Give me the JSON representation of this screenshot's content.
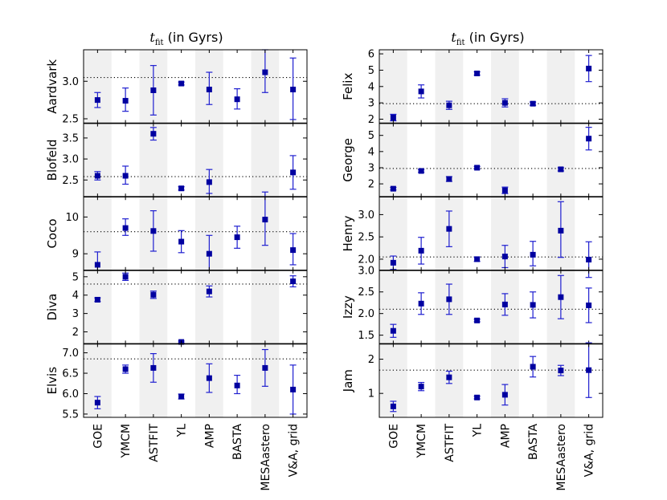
{
  "methods": [
    "GOE",
    "YMCM",
    "ASTFIT",
    "YL",
    "AMP",
    "BASTA",
    "MESAastero",
    "V&A, grid"
  ],
  "columns": [
    {
      "title": {
        "symbol": "t",
        "subscript": "fit",
        "rest": " (in Gyrs)"
      },
      "panels": [
        {
          "star": "Aardvark",
          "ylim": [
            2.44,
            3.42
          ],
          "yticks": [
            2.5,
            3.0
          ],
          "ytick_labels": [
            "2.5",
            "3.0"
          ],
          "reference": 3.05
        },
        {
          "star": "Blofeld",
          "ylim": [
            2.1,
            3.85
          ],
          "yticks": [
            2.5,
            3.0,
            3.5
          ],
          "ytick_labels": [
            "2.5",
            "3.0",
            "3.5"
          ],
          "reference": 2.58
        },
        {
          "star": "Coco",
          "ylim": [
            8.55,
            10.55
          ],
          "yticks": [
            9,
            10
          ],
          "ytick_labels": [
            "9",
            "10"
          ],
          "reference": 9.6
        },
        {
          "star": "Diva",
          "ylim": [
            1.35,
            5.35
          ],
          "yticks": [
            2,
            3,
            4,
            5
          ],
          "ytick_labels": [
            "2",
            "3",
            "4",
            "5"
          ],
          "reference": 4.6
        },
        {
          "star": "Elvis",
          "ylim": [
            5.42,
            7.22
          ],
          "yticks": [
            5.5,
            6.0,
            6.5,
            7.0
          ],
          "ytick_labels": [
            "5.5",
            "6.0",
            "6.5",
            "7.0"
          ],
          "reference": 6.85
        }
      ]
    },
    {
      "title": {
        "symbol": "t",
        "subscript": "fit",
        "rest": " (in Gyrs)"
      },
      "panels": [
        {
          "star": "Felix",
          "ylim": [
            1.75,
            6.25
          ],
          "yticks": [
            2,
            3,
            4,
            5,
            6
          ],
          "ytick_labels": [
            "2",
            "3",
            "4",
            "5",
            "6"
          ],
          "reference": 2.95
        },
        {
          "star": "George",
          "ylim": [
            1.2,
            5.75
          ],
          "yticks": [
            2,
            3,
            4,
            5
          ],
          "ytick_labels": [
            "2",
            "3",
            "4",
            "5"
          ],
          "reference": 2.95
        },
        {
          "star": "Henry",
          "ylim": [
            1.75,
            3.4
          ],
          "yticks": [
            2.0,
            2.5,
            3.0
          ],
          "ytick_labels": [
            "2.0",
            "2.5",
            "3.0"
          ],
          "reference": 2.05
        },
        {
          "star": "Izzy",
          "ylim": [
            1.3,
            3.0
          ],
          "yticks": [
            1.5,
            2.0,
            2.5,
            3.0
          ],
          "ytick_labels": [
            "1.5",
            "2.0",
            "2.5",
            "3.0"
          ],
          "reference": 2.1
        },
        {
          "star": "Jam",
          "ylim": [
            0.3,
            2.45
          ],
          "yticks": [
            1,
            2
          ],
          "ytick_labels": [
            "1",
            "2"
          ],
          "reference": 1.68
        }
      ]
    }
  ],
  "chart_data": {
    "type": "scatter",
    "title": "t_fit (in Gyrs)",
    "xlabel": "",
    "ylabel": "",
    "categories": [
      "GOE",
      "YMCM",
      "ASTFIT",
      "YL",
      "AMP",
      "BASTA",
      "MESAastero",
      "V&A, grid"
    ],
    "marker": "square",
    "color": "#0000a0",
    "errorbar_color": "#1f1fd0",
    "reference_line": "dotted",
    "shaded_categories": [
      "GOE",
      "ASTFIT",
      "AMP",
      "MESAastero"
    ],
    "panels": [
      {
        "star": "Aardvark",
        "values": [
          2.75,
          2.74,
          2.88,
          2.97,
          2.89,
          2.76,
          3.12,
          2.89
        ],
        "err_low": [
          0.1,
          0.14,
          0.33,
          0.02,
          0.2,
          0.13,
          0.27,
          0.4
        ],
        "err_high": [
          0.1,
          0.17,
          0.33,
          0.02,
          0.23,
          0.14,
          0.3,
          0.42
        ],
        "reference": 3.05
      },
      {
        "star": "Blofeld",
        "values": [
          2.6,
          2.6,
          3.6,
          2.3,
          2.45,
          null,
          null,
          2.68
        ],
        "err_low": [
          0.1,
          0.2,
          0.15,
          0.04,
          0.27,
          0,
          0,
          0.4
        ],
        "err_high": [
          0.1,
          0.23,
          0.15,
          0.04,
          0.3,
          0,
          0,
          0.4
        ],
        "reference": 2.58
      },
      {
        "star": "Coco",
        "values": [
          8.7,
          9.7,
          9.62,
          9.33,
          9.0,
          9.45,
          9.93,
          9.1
        ],
        "err_low": [
          0.35,
          0.2,
          0.55,
          0.3,
          0.5,
          0.3,
          0.7,
          0.4
        ],
        "err_high": [
          0.35,
          0.25,
          0.55,
          0.3,
          0.5,
          0.3,
          0.75,
          0.45
        ],
        "reference": 9.6
      },
      {
        "star": "Diva",
        "values": [
          3.75,
          5.0,
          4.02,
          1.45,
          4.2,
          null,
          null,
          4.75
        ],
        "err_low": [
          0.1,
          0.2,
          0.2,
          0.05,
          0.3,
          0,
          0,
          0.3
        ],
        "err_high": [
          0.1,
          0.2,
          0.2,
          0.05,
          0.3,
          0,
          0,
          0.3
        ],
        "reference": 4.6
      },
      {
        "star": "Elvis",
        "values": [
          5.78,
          6.6,
          6.63,
          5.93,
          6.38,
          6.2,
          6.63,
          6.1
        ],
        "err_low": [
          0.15,
          0.1,
          0.35,
          0.06,
          0.35,
          0.2,
          0.45,
          0.6
        ],
        "err_high": [
          0.15,
          0.1,
          0.35,
          0.06,
          0.35,
          0.25,
          0.45,
          0.6
        ],
        "reference": 6.85
      },
      {
        "star": "Felix",
        "values": [
          2.1,
          3.7,
          2.85,
          4.8,
          3.0,
          2.95,
          null,
          5.1
        ],
        "err_low": [
          0.2,
          0.4,
          0.25,
          0.1,
          0.25,
          0.1,
          0,
          0.8
        ],
        "err_high": [
          0.2,
          0.4,
          0.25,
          0.1,
          0.25,
          0.1,
          0,
          0.8
        ],
        "reference": 2.95
      },
      {
        "star": "George",
        "values": [
          1.7,
          2.8,
          2.3,
          3.0,
          1.6,
          null,
          2.9,
          4.8
        ],
        "err_low": [
          0.08,
          0.08,
          0.15,
          0.08,
          0.2,
          0,
          0.1,
          0.7
        ],
        "err_high": [
          0.08,
          0.08,
          0.15,
          0.08,
          0.2,
          0,
          0.1,
          0.7
        ],
        "reference": 2.95
      },
      {
        "star": "Henry",
        "values": [
          1.92,
          2.19,
          2.68,
          2.0,
          2.06,
          2.1,
          2.64,
          1.99
        ],
        "err_low": [
          0.15,
          0.3,
          0.4,
          0.05,
          0.25,
          0.25,
          0.6,
          0.4
        ],
        "err_high": [
          0.15,
          0.3,
          0.4,
          0.05,
          0.25,
          0.3,
          0.65,
          0.4
        ],
        "reference": 2.05
      },
      {
        "star": "Izzy",
        "values": [
          1.6,
          2.23,
          2.33,
          1.84,
          2.21,
          2.2,
          2.38,
          2.19
        ],
        "err_low": [
          0.15,
          0.25,
          0.35,
          0.03,
          0.25,
          0.3,
          0.5,
          0.4
        ],
        "err_high": [
          0.15,
          0.25,
          0.35,
          0.03,
          0.25,
          0.3,
          0.5,
          0.4
        ],
        "reference": 2.1
      },
      {
        "star": "Jam",
        "values": [
          0.62,
          1.2,
          1.47,
          0.88,
          0.96,
          1.78,
          1.67,
          1.68
        ],
        "err_low": [
          0.15,
          0.12,
          0.18,
          0.04,
          0.3,
          0.3,
          0.15,
          0.8
        ],
        "err_high": [
          0.15,
          0.12,
          0.18,
          0.04,
          0.3,
          0.3,
          0.15,
          0.8
        ],
        "reference": 1.68
      }
    ]
  }
}
